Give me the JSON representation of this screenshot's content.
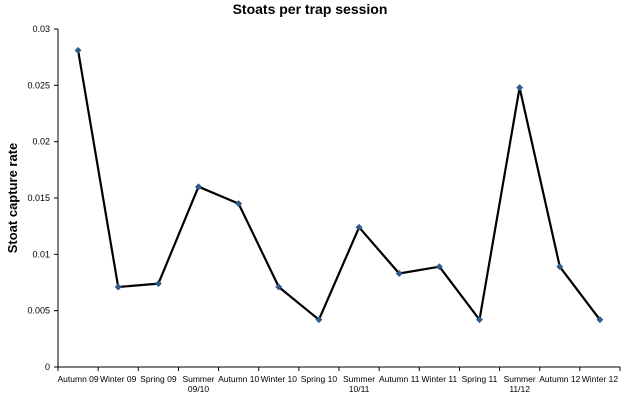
{
  "chart_data": {
    "type": "line",
    "title": "Stoats per trap session",
    "xlabel": "",
    "ylabel": "Stoat capture rate",
    "categories": [
      [
        "Autumn 09"
      ],
      [
        "Winter 09"
      ],
      [
        "Spring 09"
      ],
      [
        "Summer",
        "09/10"
      ],
      [
        "Autumn 10"
      ],
      [
        "Winter 10"
      ],
      [
        "Spring 10"
      ],
      [
        "Summer",
        "10/11"
      ],
      [
        "Autumn 11"
      ],
      [
        "Winter 11"
      ],
      [
        "Spring 11"
      ],
      [
        "Summer",
        "11/12"
      ],
      [
        "Autumn 12"
      ],
      [
        "Winter 12"
      ]
    ],
    "values": [
      0.0281,
      0.0071,
      0.0074,
      0.016,
      0.0145,
      0.0071,
      0.0042,
      0.0124,
      0.0083,
      0.0089,
      0.0042,
      0.0248,
      0.0089,
      0.0042
    ],
    "ylim": [
      0,
      0.03
    ],
    "yticks": [
      "0",
      "0.005",
      "0.01",
      "0.015",
      "0.02",
      "0.025",
      "0.03"
    ],
    "grid": false,
    "legend": "none",
    "line_color": "#000000",
    "marker_color": "#2e5a8c"
  }
}
